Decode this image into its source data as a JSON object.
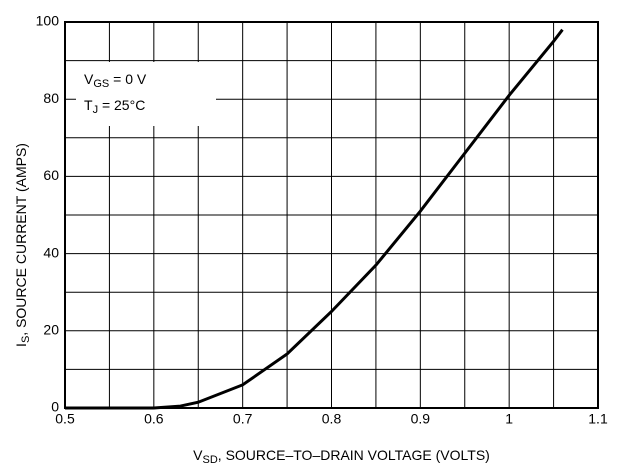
{
  "chart_data": {
    "type": "line",
    "x_label": {
      "main": "V",
      "sub": "SD",
      "rest": ", SOURCE–TO–DRAIN VOLTAGE (VOLTS)"
    },
    "y_label": {
      "main": "I",
      "sub": "S",
      "rest": ", SOURCE CURRENT (AMPS)"
    },
    "annotations": [
      {
        "main": "V",
        "sub": "GS",
        "rest": " = 0 V"
      },
      {
        "main": "T",
        "sub": "J",
        "rest": " = 25°C"
      }
    ],
    "x": [
      0.5,
      0.55,
      0.6,
      0.63,
      0.65,
      0.7,
      0.75,
      0.8,
      0.85,
      0.9,
      0.95,
      1.0,
      1.05,
      1.06
    ],
    "series": [
      {
        "name": "I_S",
        "color": "#000000",
        "values": [
          0,
          0,
          0,
          0.5,
          1.5,
          6,
          14,
          25,
          37,
          51,
          66,
          81,
          95,
          98
        ]
      }
    ],
    "xlim": [
      0.5,
      1.1
    ],
    "ylim": [
      0,
      100
    ],
    "xticks": [
      0.5,
      0.6,
      0.7,
      0.8,
      0.9,
      1,
      1.1
    ],
    "yticks": [
      0,
      20,
      40,
      60,
      80,
      100
    ],
    "xgrid": [
      0.5,
      0.55,
      0.6,
      0.65,
      0.7,
      0.75,
      0.8,
      0.85,
      0.9,
      0.95,
      1,
      1.05,
      1.1
    ],
    "ygrid": [
      0,
      10,
      20,
      30,
      40,
      50,
      60,
      70,
      80,
      90,
      100
    ],
    "grid": true
  }
}
